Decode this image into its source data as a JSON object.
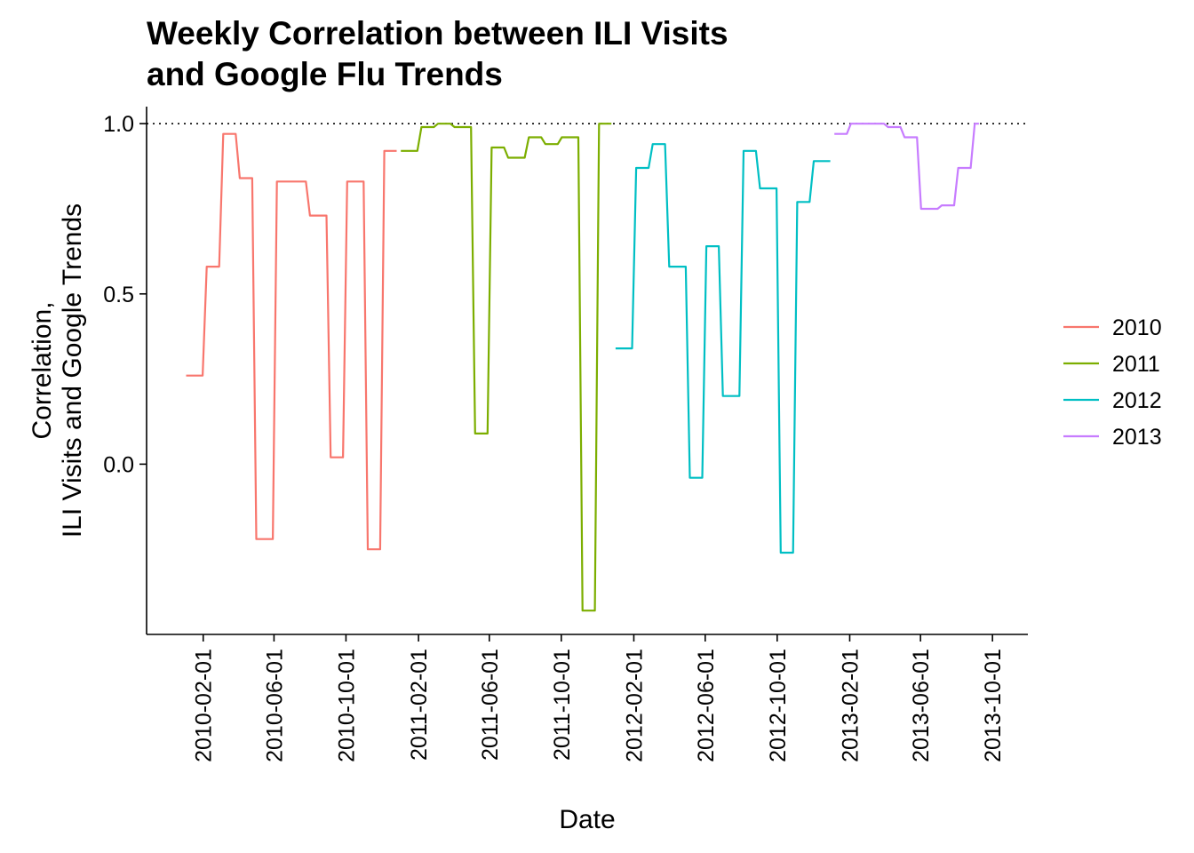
{
  "chart_data": {
    "type": "line",
    "title": [
      "Weekly Correlation between ILI Visits",
      "and Google Flu Trends"
    ],
    "xlabel": "Date",
    "ylabel": [
      "Correlation,",
      "ILI Visits and Google Trends"
    ],
    "xlim": [
      "2009-10-28",
      "2013-11-30"
    ],
    "ylim": [
      -0.5,
      1.05
    ],
    "x_ticks": [
      "2010-02-01",
      "2010-06-01",
      "2010-10-01",
      "2011-02-01",
      "2011-06-01",
      "2011-10-01",
      "2012-02-01",
      "2012-06-01",
      "2012-10-01",
      "2013-02-01",
      "2013-06-01",
      "2013-10-01"
    ],
    "y_ticks": [
      0.0,
      0.5,
      1.0
    ],
    "y_tick_labels": [
      "0.0",
      "0.5",
      "1.0"
    ],
    "reference_line": {
      "y": 1.0,
      "style": "dotted",
      "color": "#000000"
    },
    "legend": {
      "position": "right",
      "entries": [
        "2010",
        "2011",
        "2012",
        "2013"
      ]
    },
    "grid": false,
    "series": [
      {
        "name": "2010",
        "color": "#F8766D",
        "points": [
          [
            "2010-01-03",
            0.26
          ],
          [
            "2010-01-31",
            0.26
          ],
          [
            "2010-02-07",
            0.58
          ],
          [
            "2010-02-28",
            0.58
          ],
          [
            "2010-03-07",
            0.97
          ],
          [
            "2010-03-28",
            0.97
          ],
          [
            "2010-04-04",
            0.84
          ],
          [
            "2010-04-25",
            0.84
          ],
          [
            "2010-05-02",
            -0.22
          ],
          [
            "2010-05-30",
            -0.22
          ],
          [
            "2010-06-06",
            0.83
          ],
          [
            "2010-07-25",
            0.83
          ],
          [
            "2010-08-01",
            0.73
          ],
          [
            "2010-08-29",
            0.73
          ],
          [
            "2010-09-05",
            0.02
          ],
          [
            "2010-09-26",
            0.02
          ],
          [
            "2010-10-03",
            0.83
          ],
          [
            "2010-10-31",
            0.83
          ],
          [
            "2010-11-07",
            -0.25
          ],
          [
            "2010-11-28",
            -0.25
          ],
          [
            "2010-12-05",
            0.92
          ],
          [
            "2010-12-26",
            0.92
          ]
        ]
      },
      {
        "name": "2011",
        "color": "#7CAE00",
        "points": [
          [
            "2011-01-02",
            0.92
          ],
          [
            "2011-01-30",
            0.92
          ],
          [
            "2011-02-06",
            0.99
          ],
          [
            "2011-02-27",
            0.99
          ],
          [
            "2011-03-06",
            1.0
          ],
          [
            "2011-03-27",
            1.0
          ],
          [
            "2011-04-03",
            0.99
          ],
          [
            "2011-05-01",
            0.99
          ],
          [
            "2011-05-08",
            0.09
          ],
          [
            "2011-05-29",
            0.09
          ],
          [
            "2011-06-05",
            0.93
          ],
          [
            "2011-06-26",
            0.93
          ],
          [
            "2011-07-03",
            0.9
          ],
          [
            "2011-07-31",
            0.9
          ],
          [
            "2011-08-07",
            0.96
          ],
          [
            "2011-08-28",
            0.96
          ],
          [
            "2011-09-04",
            0.94
          ],
          [
            "2011-09-25",
            0.94
          ],
          [
            "2011-10-02",
            0.96
          ],
          [
            "2011-10-30",
            0.96
          ],
          [
            "2011-11-06",
            -0.43
          ],
          [
            "2011-11-27",
            -0.43
          ],
          [
            "2011-12-04",
            1.0
          ],
          [
            "2011-12-25",
            1.0
          ]
        ]
      },
      {
        "name": "2012",
        "color": "#00BFC4",
        "points": [
          [
            "2012-01-01",
            0.34
          ],
          [
            "2012-01-29",
            0.34
          ],
          [
            "2012-02-05",
            0.87
          ],
          [
            "2012-02-26",
            0.87
          ],
          [
            "2012-03-04",
            0.94
          ],
          [
            "2012-03-25",
            0.94
          ],
          [
            "2012-04-01",
            0.58
          ],
          [
            "2012-04-29",
            0.58
          ],
          [
            "2012-05-06",
            -0.04
          ],
          [
            "2012-05-27",
            -0.04
          ],
          [
            "2012-06-03",
            0.64
          ],
          [
            "2012-06-24",
            0.64
          ],
          [
            "2012-07-01",
            0.2
          ],
          [
            "2012-07-29",
            0.2
          ],
          [
            "2012-08-05",
            0.92
          ],
          [
            "2012-08-26",
            0.92
          ],
          [
            "2012-09-02",
            0.81
          ],
          [
            "2012-09-30",
            0.81
          ],
          [
            "2012-10-07",
            -0.26
          ],
          [
            "2012-10-28",
            -0.26
          ],
          [
            "2012-11-04",
            0.77
          ],
          [
            "2012-11-25",
            0.77
          ],
          [
            "2012-12-02",
            0.89
          ],
          [
            "2012-12-30",
            0.89
          ]
        ]
      },
      {
        "name": "2013",
        "color": "#C77CFF",
        "points": [
          [
            "2013-01-06",
            0.97
          ],
          [
            "2013-01-27",
            0.97
          ],
          [
            "2013-02-03",
            1.0
          ],
          [
            "2013-03-31",
            1.0
          ],
          [
            "2013-04-07",
            0.99
          ],
          [
            "2013-04-28",
            0.99
          ],
          [
            "2013-05-05",
            0.96
          ],
          [
            "2013-05-26",
            0.96
          ],
          [
            "2013-06-02",
            0.75
          ],
          [
            "2013-06-30",
            0.75
          ],
          [
            "2013-07-07",
            0.76
          ],
          [
            "2013-07-28",
            0.76
          ],
          [
            "2013-08-04",
            0.87
          ],
          [
            "2013-08-25",
            0.87
          ],
          [
            "2013-09-01",
            1.0
          ],
          [
            "2013-09-08",
            1.0
          ]
        ]
      }
    ]
  }
}
